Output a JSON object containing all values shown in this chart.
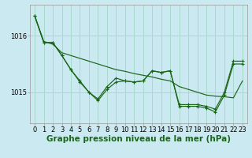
{
  "background_color": "#cbe9f0",
  "plot_bg_color": "#cbe9f0",
  "grid_color": "#a8d8cc",
  "line_color": "#1a6619",
  "xlabel": "Graphe pression niveau de la mer (hPa)",
  "xlabel_fontsize": 7.5,
  "xlim": [
    -0.5,
    23.5
  ],
  "ylim": [
    1014.45,
    1016.55
  ],
  "yticks": [
    1015,
    1016
  ],
  "xticks": [
    0,
    1,
    2,
    3,
    4,
    5,
    6,
    7,
    8,
    9,
    10,
    11,
    12,
    13,
    14,
    15,
    16,
    17,
    18,
    19,
    20,
    21,
    22,
    23
  ],
  "series_smooth": [
    1016.35,
    1015.9,
    1015.85,
    1015.7,
    1015.65,
    1015.6,
    1015.55,
    1015.5,
    1015.45,
    1015.4,
    1015.37,
    1015.33,
    1015.3,
    1015.27,
    1015.23,
    1015.2,
    1015.1,
    1015.05,
    1015.0,
    1014.95,
    1014.93,
    1014.92,
    1014.9,
    1015.2
  ],
  "series_main": [
    1016.35,
    1015.88,
    1015.88,
    1015.65,
    1015.4,
    1015.2,
    1015.0,
    1014.88,
    1015.1,
    1015.25,
    1015.2,
    1015.18,
    1015.2,
    1015.38,
    1015.35,
    1015.38,
    1014.78,
    1014.78,
    1014.78,
    1014.75,
    1014.7,
    1015.0,
    1015.55,
    1015.55
  ],
  "series_alt": [
    1016.35,
    1015.88,
    1015.88,
    1015.65,
    1015.4,
    1015.18,
    1015.0,
    1014.85,
    1015.05,
    1015.18,
    1015.2,
    1015.18,
    1015.2,
    1015.38,
    1015.35,
    1015.38,
    1014.75,
    1014.75,
    1014.75,
    1014.72,
    1014.65,
    1014.95,
    1015.5,
    1015.5
  ],
  "tick_fontsize": 6,
  "marker_size": 3,
  "lw": 0.85
}
